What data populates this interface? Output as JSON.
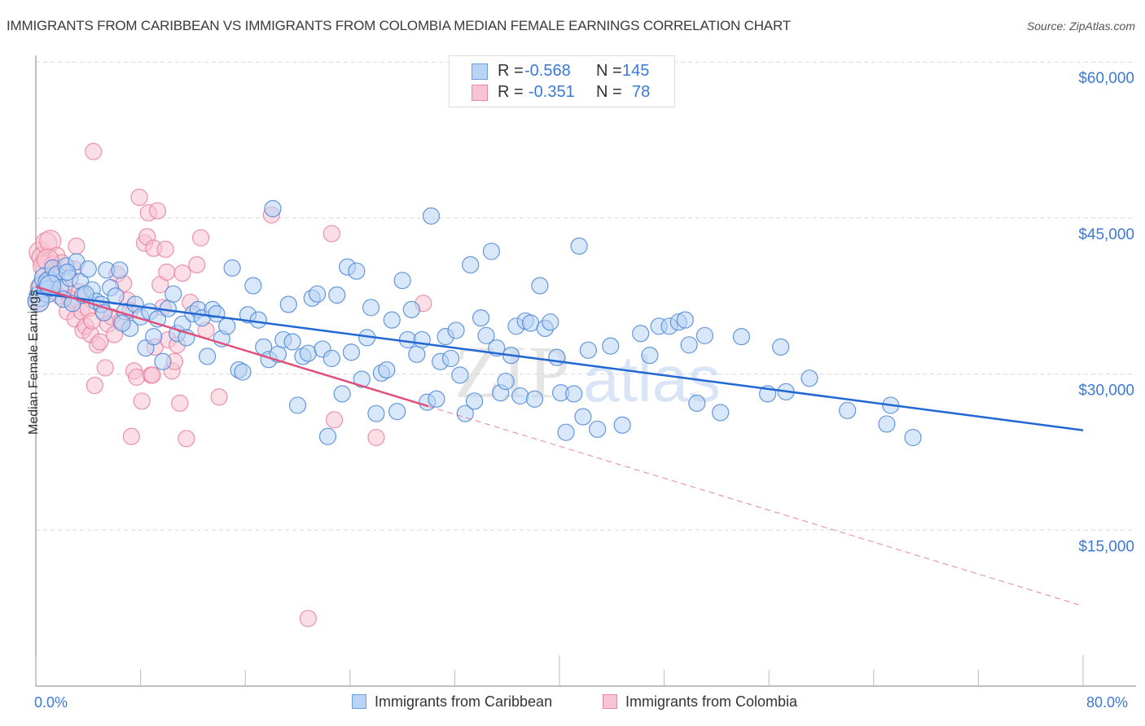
{
  "header": {
    "title": "IMMIGRANTS FROM CARIBBEAN VS IMMIGRANTS FROM COLOMBIA MEDIAN FEMALE EARNINGS CORRELATION CHART",
    "source": "Source: ZipAtlas.com"
  },
  "watermark": {
    "zip": "ZIP",
    "atlas": "atlas"
  },
  "legend": {
    "rows": [
      {
        "r_label": "R =",
        "r_value": "-0.568",
        "n_label": "N =",
        "n_value": "145"
      },
      {
        "r_label": "R =",
        "r_value": "-0.351",
        "n_label": "N =",
        "n_value": "78"
      }
    ]
  },
  "colors": {
    "caribbean_fill": "#b8d3f4",
    "caribbean_stroke": "#4a86d8",
    "caribbean_line": "#2167d4",
    "colombia_fill": "#f8c3d2",
    "colombia_stroke": "#e8809f",
    "colombia_line": "#e0507a",
    "axis_label": "#3b78d8",
    "grid": "#d8d8d8"
  },
  "chart_data": {
    "type": "scatter",
    "title": "IMMIGRANTS FROM CARIBBEAN VS IMMIGRANTS FROM COLOMBIA MEDIAN FEMALE EARNINGS CORRELATION CHART",
    "xlabel": "",
    "ylabel": "Median Female Earnings",
    "xlim": [
      0,
      80
    ],
    "ylim": [
      0,
      62000
    ],
    "x_tick_labels": [
      "0.0%",
      "80.0%"
    ],
    "x_minor_ticks": [
      0,
      8,
      16,
      24,
      32,
      40,
      48,
      56,
      64,
      72,
      80
    ],
    "y_ticks": [
      15000,
      30000,
      45000,
      60000
    ],
    "y_tick_labels": [
      "$15,000",
      "$30,000",
      "$45,000",
      "$60,000"
    ],
    "grid": true,
    "legend_position": "top-center",
    "series": [
      {
        "name": "Immigrants from Caribbean",
        "R": -0.568,
        "N": 145,
        "trend": {
          "x": [
            0,
            80
          ],
          "y": [
            37800,
            24600
          ],
          "style": "solid"
        },
        "points": [
          [
            0.3,
            37500
          ],
          [
            0.5,
            38400
          ],
          [
            0.7,
            39200
          ],
          [
            0.9,
            37900
          ],
          [
            1.0,
            38800
          ],
          [
            1.3,
            40200
          ],
          [
            1.6,
            39600
          ],
          [
            1.9,
            38300
          ],
          [
            2.1,
            37200
          ],
          [
            2.3,
            40400
          ],
          [
            2.6,
            39200
          ],
          [
            2.8,
            36800
          ],
          [
            3.1,
            40800
          ],
          [
            3.4,
            38900
          ],
          [
            3.6,
            37600
          ],
          [
            4.0,
            40100
          ],
          [
            4.3,
            38100
          ],
          [
            4.6,
            37000
          ],
          [
            5.0,
            36700
          ],
          [
            5.4,
            40000
          ],
          [
            5.7,
            38300
          ],
          [
            6.1,
            37500
          ],
          [
            6.4,
            40000
          ],
          [
            6.8,
            36000
          ],
          [
            7.2,
            34400
          ],
          [
            7.6,
            36700
          ],
          [
            8.0,
            35500
          ],
          [
            8.4,
            32500
          ],
          [
            8.7,
            36000
          ],
          [
            9.0,
            33600
          ],
          [
            9.3,
            35300
          ],
          [
            9.7,
            31200
          ],
          [
            10.1,
            36300
          ],
          [
            10.5,
            37700
          ],
          [
            10.8,
            33900
          ],
          [
            11.2,
            34800
          ],
          [
            11.5,
            33500
          ],
          [
            12.0,
            35800
          ],
          [
            12.4,
            36200
          ],
          [
            12.7,
            35400
          ],
          [
            13.1,
            31700
          ],
          [
            13.5,
            36200
          ],
          [
            13.8,
            35800
          ],
          [
            14.2,
            33400
          ],
          [
            14.6,
            34600
          ],
          [
            15.0,
            40200
          ],
          [
            15.5,
            30400
          ],
          [
            15.8,
            30200
          ],
          [
            16.2,
            35700
          ],
          [
            16.6,
            38500
          ],
          [
            17.0,
            35200
          ],
          [
            17.4,
            32600
          ],
          [
            17.8,
            31400
          ],
          [
            18.1,
            45900
          ],
          [
            18.5,
            31900
          ],
          [
            18.9,
            33300
          ],
          [
            19.3,
            36700
          ],
          [
            19.6,
            33100
          ],
          [
            20.0,
            27000
          ],
          [
            20.4,
            31700
          ],
          [
            20.8,
            32000
          ],
          [
            21.1,
            37300
          ],
          [
            21.5,
            37700
          ],
          [
            21.9,
            32400
          ],
          [
            22.3,
            24000
          ],
          [
            22.6,
            31500
          ],
          [
            23.0,
            37600
          ],
          [
            23.4,
            28100
          ],
          [
            23.8,
            40300
          ],
          [
            24.1,
            32100
          ],
          [
            24.5,
            39900
          ],
          [
            24.9,
            29500
          ],
          [
            25.3,
            33500
          ],
          [
            25.6,
            36400
          ],
          [
            26.0,
            26200
          ],
          [
            26.4,
            30100
          ],
          [
            26.8,
            30400
          ],
          [
            27.2,
            35200
          ],
          [
            27.6,
            26400
          ],
          [
            28.0,
            39000
          ],
          [
            28.4,
            33300
          ],
          [
            28.7,
            36200
          ],
          [
            29.1,
            31900
          ],
          [
            29.5,
            33300
          ],
          [
            29.9,
            27300
          ],
          [
            30.2,
            45200
          ],
          [
            30.6,
            27600
          ],
          [
            30.9,
            31200
          ],
          [
            31.3,
            33600
          ],
          [
            31.7,
            31500
          ],
          [
            32.1,
            34200
          ],
          [
            32.4,
            29900
          ],
          [
            32.8,
            26200
          ],
          [
            33.2,
            40500
          ],
          [
            33.5,
            27400
          ],
          [
            34.0,
            35400
          ],
          [
            34.4,
            33700
          ],
          [
            34.8,
            41800
          ],
          [
            35.2,
            32500
          ],
          [
            35.5,
            28200
          ],
          [
            35.9,
            29300
          ],
          [
            36.3,
            31800
          ],
          [
            36.7,
            34600
          ],
          [
            37.0,
            27900
          ],
          [
            37.4,
            35100
          ],
          [
            37.8,
            34900
          ],
          [
            38.1,
            27600
          ],
          [
            38.5,
            38500
          ],
          [
            38.9,
            34400
          ],
          [
            39.3,
            35000
          ],
          [
            39.8,
            31600
          ],
          [
            40.1,
            28200
          ],
          [
            40.5,
            24400
          ],
          [
            41.1,
            28100
          ],
          [
            41.5,
            42300
          ],
          [
            41.8,
            25900
          ],
          [
            42.2,
            32300
          ],
          [
            42.9,
            24700
          ],
          [
            43.9,
            32700
          ],
          [
            44.8,
            25100
          ],
          [
            46.2,
            33900
          ],
          [
            46.9,
            31800
          ],
          [
            47.6,
            34600
          ],
          [
            48.4,
            34600
          ],
          [
            49.1,
            35000
          ],
          [
            49.6,
            35200
          ],
          [
            49.9,
            32800
          ],
          [
            50.5,
            27200
          ],
          [
            51.1,
            33700
          ],
          [
            52.3,
            26300
          ],
          [
            53.9,
            33600
          ],
          [
            55.9,
            28100
          ],
          [
            56.9,
            32600
          ],
          [
            57.3,
            28300
          ],
          [
            59.1,
            29600
          ],
          [
            62.0,
            26500
          ],
          [
            65.0,
            25200
          ],
          [
            65.3,
            27000
          ],
          [
            67.0,
            23900
          ],
          [
            0.2,
            37000
          ],
          [
            1.1,
            38500
          ],
          [
            2.4,
            39800
          ],
          [
            3.8,
            37700
          ],
          [
            5.2,
            35900
          ],
          [
            6.6,
            34900
          ]
        ]
      },
      {
        "name": "Immigrants from Colombia",
        "R": -0.351,
        "N": 78,
        "trend": {
          "x": [
            0,
            30.0,
            80
          ],
          "y": [
            38400,
            26900,
            7700
          ],
          "solid_until": 30.0,
          "style": "solid-then-dashed"
        },
        "points": [
          [
            0.2,
            37000
          ],
          [
            0.3,
            41700
          ],
          [
            0.5,
            41200
          ],
          [
            0.6,
            40400
          ],
          [
            0.8,
            42600
          ],
          [
            1.0,
            38900
          ],
          [
            1.1,
            42800
          ],
          [
            1.3,
            40600
          ],
          [
            1.5,
            39800
          ],
          [
            1.6,
            41400
          ],
          [
            1.8,
            37500
          ],
          [
            2.0,
            40700
          ],
          [
            2.2,
            38300
          ],
          [
            2.4,
            36000
          ],
          [
            2.6,
            37300
          ],
          [
            2.8,
            37100
          ],
          [
            3.0,
            35300
          ],
          [
            3.1,
            42300
          ],
          [
            3.3,
            37900
          ],
          [
            3.5,
            36000
          ],
          [
            3.6,
            34200
          ],
          [
            3.8,
            34600
          ],
          [
            4.0,
            36300
          ],
          [
            4.2,
            33800
          ],
          [
            4.3,
            35100
          ],
          [
            4.5,
            28900
          ],
          [
            4.7,
            32800
          ],
          [
            4.9,
            33100
          ],
          [
            5.1,
            36100
          ],
          [
            5.3,
            30600
          ],
          [
            5.5,
            34800
          ],
          [
            5.8,
            35500
          ],
          [
            4.4,
            51400
          ],
          [
            6.0,
            33800
          ],
          [
            6.2,
            39600
          ],
          [
            6.5,
            35100
          ],
          [
            6.7,
            38700
          ],
          [
            7.0,
            37100
          ],
          [
            7.2,
            36100
          ],
          [
            7.3,
            24000
          ],
          [
            7.5,
            30300
          ],
          [
            7.7,
            29700
          ],
          [
            7.9,
            47000
          ],
          [
            8.1,
            27400
          ],
          [
            8.3,
            42600
          ],
          [
            8.5,
            43200
          ],
          [
            8.6,
            45500
          ],
          [
            8.8,
            29900
          ],
          [
            8.9,
            29900
          ],
          [
            9.0,
            42100
          ],
          [
            9.1,
            32600
          ],
          [
            9.3,
            45700
          ],
          [
            9.5,
            38600
          ],
          [
            9.7,
            36400
          ],
          [
            9.9,
            42000
          ],
          [
            10.0,
            39800
          ],
          [
            10.1,
            33300
          ],
          [
            10.4,
            30300
          ],
          [
            10.6,
            31200
          ],
          [
            10.8,
            32800
          ],
          [
            11.0,
            27200
          ],
          [
            11.2,
            39700
          ],
          [
            11.5,
            23800
          ],
          [
            11.8,
            36900
          ],
          [
            12.3,
            40500
          ],
          [
            12.6,
            43100
          ],
          [
            13.0,
            34200
          ],
          [
            14.0,
            27800
          ],
          [
            18.0,
            45300
          ],
          [
            20.8,
            6500
          ],
          [
            22.6,
            43500
          ],
          [
            22.8,
            25600
          ],
          [
            26.0,
            23900
          ],
          [
            29.6,
            36800
          ],
          [
            1.4,
            39300
          ],
          [
            2.9,
            40100
          ],
          [
            0.4,
            38300
          ],
          [
            0.9,
            41000
          ]
        ]
      }
    ]
  },
  "bottom_legend": {
    "items": [
      {
        "label": "Immigrants from Caribbean"
      },
      {
        "label": "Immigrants from Colombia"
      }
    ]
  }
}
